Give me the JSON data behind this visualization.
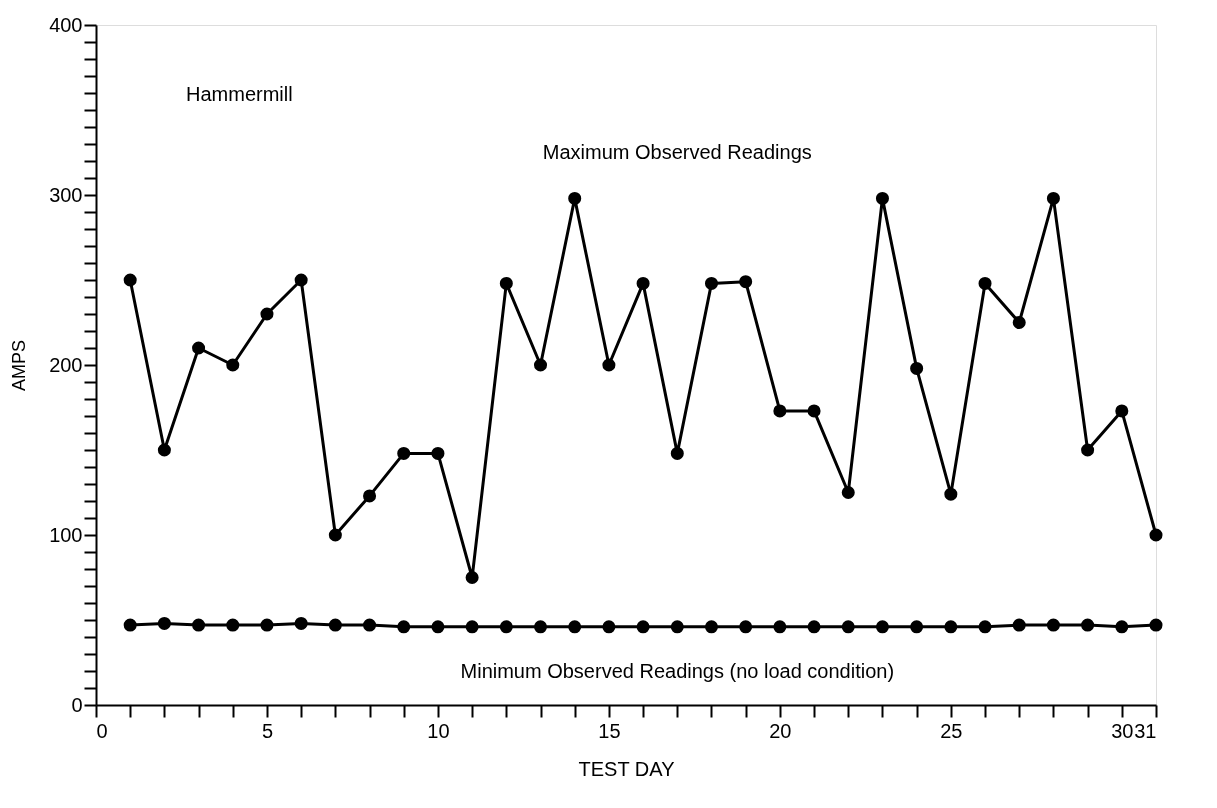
{
  "chart_data": {
    "type": "line",
    "xlabel": "TEST DAY",
    "ylabel": "AMPS",
    "annotations": [
      "Hammermill"
    ],
    "x": [
      1,
      2,
      3,
      4,
      5,
      6,
      7,
      8,
      9,
      10,
      11,
      12,
      13,
      14,
      15,
      16,
      17,
      18,
      19,
      20,
      21,
      22,
      23,
      24,
      25,
      26,
      27,
      28,
      29,
      30,
      31
    ],
    "series": [
      {
        "name": "Maximum Observed Readings",
        "color": "#000000",
        "values": [
          250,
          150,
          210,
          200,
          230,
          250,
          100,
          123,
          148,
          148,
          75,
          248,
          200,
          298,
          200,
          248,
          148,
          248,
          249,
          173,
          173,
          125,
          298,
          198,
          124,
          248,
          225,
          298,
          150,
          173,
          100
        ]
      },
      {
        "name": "Minimum Observed Readings (no load condition)",
        "color": "#000000",
        "values": [
          47,
          48,
          47,
          47,
          47,
          48,
          47,
          47,
          46,
          46,
          46,
          46,
          46,
          46,
          46,
          46,
          46,
          46,
          46,
          46,
          46,
          46,
          46,
          46,
          46,
          46,
          47,
          47,
          47,
          46,
          47
        ]
      }
    ],
    "xlim": [
      0,
      31
    ],
    "xticks": [
      0,
      {
        "value": 1,
        "label": null
      },
      {
        "value": 2,
        "label": null
      },
      {
        "value": 3,
        "label": null
      },
      {
        "value": 4,
        "label": null
      },
      5,
      {
        "value": 6,
        "label": null
      },
      {
        "value": 7,
        "label": null
      },
      {
        "value": 8,
        "label": null
      },
      {
        "value": 9,
        "label": null
      },
      10,
      {
        "value": 11,
        "label": null
      },
      {
        "value": 12,
        "label": null
      },
      {
        "value": 13,
        "label": null
      },
      {
        "value": 14,
        "label": null
      },
      15,
      {
        "value": 16,
        "label": null
      },
      {
        "value": 17,
        "label": null
      },
      {
        "value": 18,
        "label": null
      },
      {
        "value": 19,
        "label": null
      },
      20,
      {
        "value": 21,
        "label": null
      },
      {
        "value": 22,
        "label": null
      },
      {
        "value": 23,
        "label": null
      },
      {
        "value": 24,
        "label": null
      },
      25,
      {
        "value": 26,
        "label": null
      },
      {
        "value": 27,
        "label": null
      },
      {
        "value": 28,
        "label": null
      },
      {
        "value": 29,
        "label": null
      },
      30,
      31
    ],
    "ylim": [
      0,
      400
    ],
    "yticks": [
      0,
      {
        "value": 10,
        "label": null
      },
      {
        "value": 20,
        "label": null
      },
      {
        "value": 30,
        "label": null
      },
      {
        "value": 40,
        "label": null
      },
      {
        "value": 50,
        "label": null
      },
      {
        "value": 60,
        "label": null
      },
      {
        "value": 70,
        "label": null
      },
      {
        "value": 80,
        "label": null
      },
      {
        "value": 90,
        "label": null
      },
      100,
      {
        "value": 110,
        "label": null
      },
      {
        "value": 120,
        "label": null
      },
      {
        "value": 130,
        "label": null
      },
      {
        "value": 140,
        "label": null
      },
      {
        "value": 150,
        "label": null
      },
      {
        "value": 160,
        "label": null
      },
      {
        "value": 170,
        "label": null
      },
      {
        "value": 180,
        "label": null
      },
      {
        "value": 190,
        "label": null
      },
      200,
      {
        "value": 210,
        "label": null
      },
      {
        "value": 220,
        "label": null
      },
      {
        "value": 230,
        "label": null
      },
      {
        "value": 240,
        "label": null
      },
      {
        "value": 250,
        "label": null
      },
      {
        "value": 260,
        "label": null
      },
      {
        "value": 270,
        "label": null
      },
      {
        "value": 280,
        "label": null
      },
      {
        "value": 290,
        "label": null
      },
      300,
      {
        "value": 310,
        "label": null
      },
      {
        "value": 320,
        "label": null
      },
      {
        "value": 330,
        "label": null
      },
      {
        "value": 340,
        "label": null
      },
      {
        "value": 350,
        "label": null
      },
      {
        "value": 360,
        "label": null
      },
      {
        "value": 370,
        "label": null
      },
      {
        "value": 380,
        "label": null
      },
      {
        "value": 390,
        "label": null
      },
      400
    ],
    "grid": false,
    "marker": "circle",
    "line_style": "solid"
  }
}
